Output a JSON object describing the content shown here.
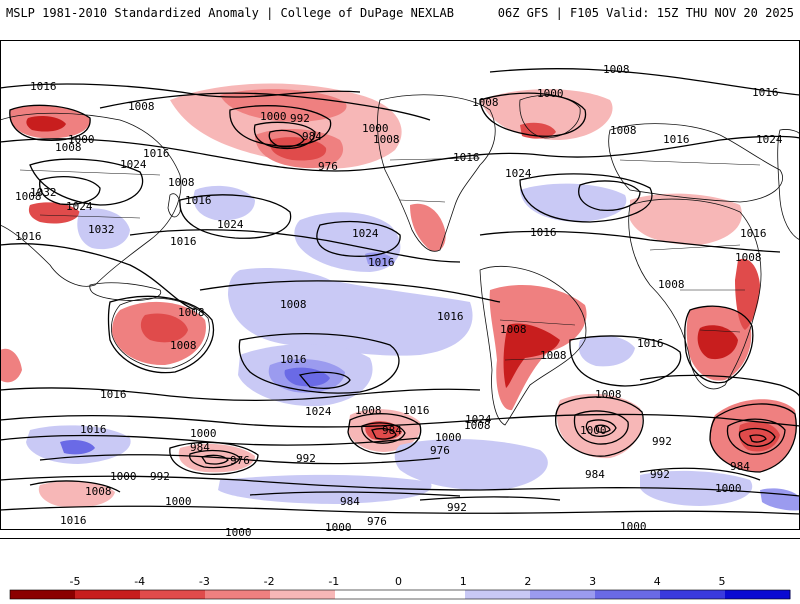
{
  "header": {
    "left_title": "MSLP 1981-2010 Standardized Anomaly | College of DuPage NEXLAB",
    "right_title": "06Z GFS | F105 Valid: 15Z THU NOV 20 2025"
  },
  "colors": {
    "neg5": "#8b0000",
    "neg4": "#c81e1e",
    "neg3": "#e04b4b",
    "neg2": "#ef8080",
    "neg1": "#f7b7b7",
    "zero": "#ffffff",
    "pos1": "#c9c9f5",
    "pos2": "#9b9bef",
    "pos3": "#6a6ae6",
    "pos4": "#3a3ade",
    "pos5": "#0a0ad2",
    "land": "#111111"
  },
  "colorbar": {
    "ticks": [
      "-5",
      "-4",
      "-3",
      "-2",
      "-1",
      "0",
      "1",
      "2",
      "3",
      "4",
      "5"
    ]
  },
  "contour_labels": [
    "1016",
    "1008",
    "1000",
    "1008",
    "1008",
    "1016",
    "1024",
    "1008",
    "1032",
    "1024",
    "1016",
    "1032",
    "1000",
    "992",
    "984",
    "976",
    "1000",
    "1008",
    "1008",
    "1016",
    "1024",
    "1000",
    "1008",
    "1008",
    "1016",
    "1024",
    "1016",
    "1024",
    "1016",
    "1016",
    "1024",
    "1016",
    "1008",
    "1016",
    "1008",
    "1008",
    "1008",
    "1008",
    "1008",
    "1008",
    "1016",
    "1016",
    "1016",
    "1016",
    "1016",
    "1024",
    "1024",
    "1008",
    "1016",
    "1008",
    "1000",
    "984",
    "976",
    "1000",
    "992",
    "984",
    "976",
    "1000",
    "1008",
    "992",
    "1000",
    "992",
    "984",
    "976",
    "1000",
    "1008",
    "1016",
    "1016",
    "992",
    "1000",
    "984",
    "992",
    "1000",
    "984",
    "1000",
    "1000"
  ]
}
